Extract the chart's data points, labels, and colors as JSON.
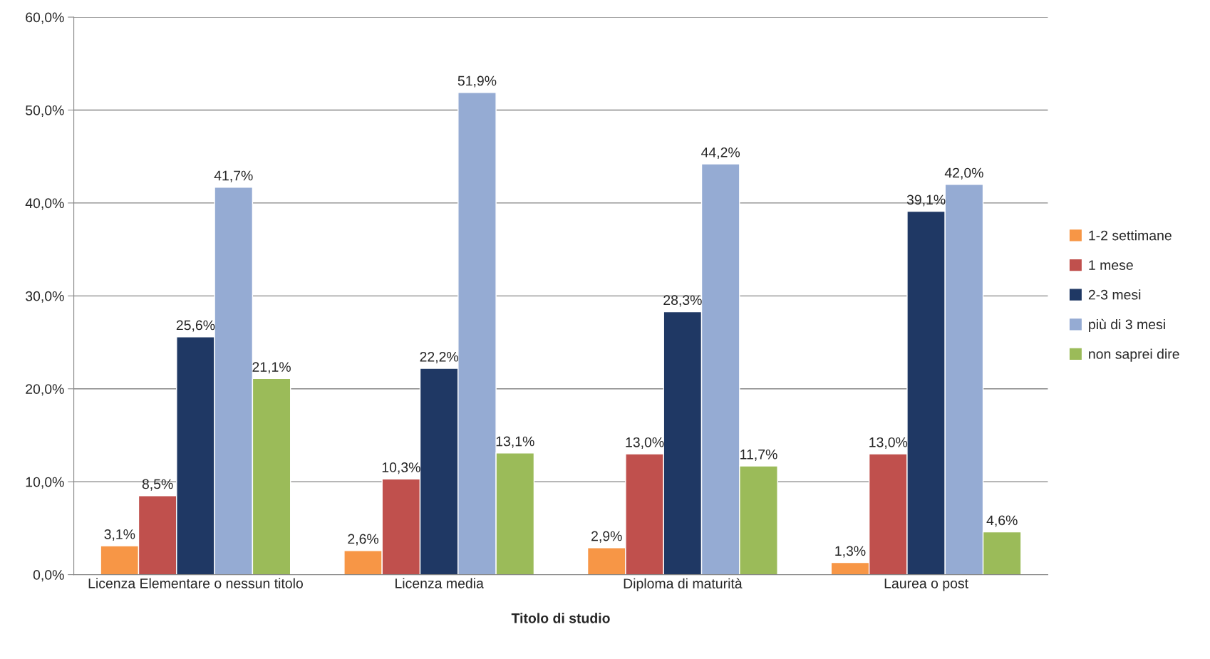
{
  "chart_data": {
    "type": "bar",
    "xlabel": "Titolo di studio",
    "categories": [
      "Licenza Elementare o nessun titolo",
      "Licenza media",
      "Diploma di maturità",
      "Laurea o post"
    ],
    "series": [
      {
        "name": "1-2 settimane",
        "color": "#f79646",
        "values": [
          3.1,
          2.6,
          2.9,
          1.3
        ],
        "value_labels": [
          "3,1%",
          "2,6%",
          "2,9%",
          "1,3%"
        ]
      },
      {
        "name": "1 mese",
        "color": "#c0504d",
        "values": [
          8.5,
          10.3,
          13.0,
          13.0
        ],
        "value_labels": [
          "8,5%",
          "10,3%",
          "13,0%",
          "13,0%"
        ]
      },
      {
        "name": "2-3 mesi",
        "color": "#1f3864",
        "values": [
          25.6,
          22.2,
          28.3,
          39.1
        ],
        "value_labels": [
          "25,6%",
          "22,2%",
          "28,3%",
          "39,1%"
        ]
      },
      {
        "name": "più di 3 mesi",
        "color": "#95abd3",
        "values": [
          41.7,
          51.9,
          44.2,
          42.0
        ],
        "value_labels": [
          "41,7%",
          "51,9%",
          "44,2%",
          "42,0%"
        ]
      },
      {
        "name": "non saprei dire",
        "color": "#9bbb59",
        "values": [
          21.1,
          13.1,
          11.7,
          4.6
        ],
        "value_labels": [
          "21,1%",
          "13,1%",
          "11,7%",
          "4,6%"
        ]
      }
    ],
    "ylim": [
      0,
      60
    ],
    "yticks": [
      {
        "value": 0,
        "label": "0,0%"
      },
      {
        "value": 10,
        "label": "10,0%"
      },
      {
        "value": 20,
        "label": "20,0%"
      },
      {
        "value": 30,
        "label": "30,0%"
      },
      {
        "value": 40,
        "label": "40,0%"
      },
      {
        "value": 50,
        "label": "50,0%"
      },
      {
        "value": 60,
        "label": "60,0%"
      }
    ],
    "grid": "y",
    "legend": "right"
  }
}
